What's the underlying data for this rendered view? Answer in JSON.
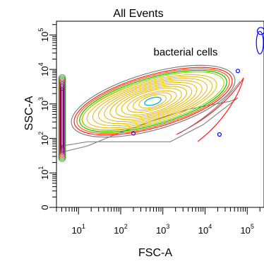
{
  "chart_data": {
    "type": "contour",
    "title": "All Events",
    "xlabel": "FSC-A",
    "ylabel": "SSC-A",
    "x_scale": "log",
    "y_scale": "log",
    "xlim": [
      3,
      250000
    ],
    "ylim": [
      1,
      250000
    ],
    "x_ticks": [
      {
        "base": "10",
        "exp": "1"
      },
      {
        "base": "10",
        "exp": "2"
      },
      {
        "base": "10",
        "exp": "3"
      },
      {
        "base": "10",
        "exp": "4"
      },
      {
        "base": "10",
        "exp": "5"
      }
    ],
    "y_ticks": [
      {
        "base": "0",
        "exp": ""
      },
      {
        "base": "10",
        "exp": "1"
      },
      {
        "base": "10",
        "exp": "2"
      },
      {
        "base": "10",
        "exp": "3"
      },
      {
        "base": "10",
        "exp": "4"
      },
      {
        "base": "10",
        "exp": "5"
      }
    ],
    "annotations": [
      {
        "text": "bacterial cells",
        "x": 600,
        "y": 25000
      }
    ],
    "gate_polygon": [
      [
        4,
        40
      ],
      [
        16,
        60
      ],
      [
        100,
        150
      ],
      [
        700,
        350
      ],
      [
        4000,
        700
      ],
      [
        40000,
        1200
      ],
      [
        60000,
        1500
      ],
      [
        9000,
        250
      ],
      [
        1500,
        80
      ],
      [
        16,
        80
      ],
      [
        4,
        60
      ]
    ],
    "main_population": {
      "center": [
        400,
        1200
      ],
      "color_outer": "#e6b800",
      "color_inner": "#00b0e0"
    },
    "edge_population": {
      "x": 4.5,
      "y_range": [
        60,
        2500
      ],
      "color": "#800080"
    },
    "outliers": [
      {
        "x": 200,
        "y": 140,
        "color": "#800080"
      },
      {
        "x": 22000,
        "y": 130,
        "color": "#0000ff"
      },
      {
        "x": 60000,
        "y": 9000,
        "color": "#0000ff"
      },
      {
        "x": 200000,
        "y": 60000,
        "color": "#0000ff"
      },
      {
        "x": 210000,
        "y": 130000,
        "color": "#0000ff"
      }
    ],
    "grid": false
  }
}
